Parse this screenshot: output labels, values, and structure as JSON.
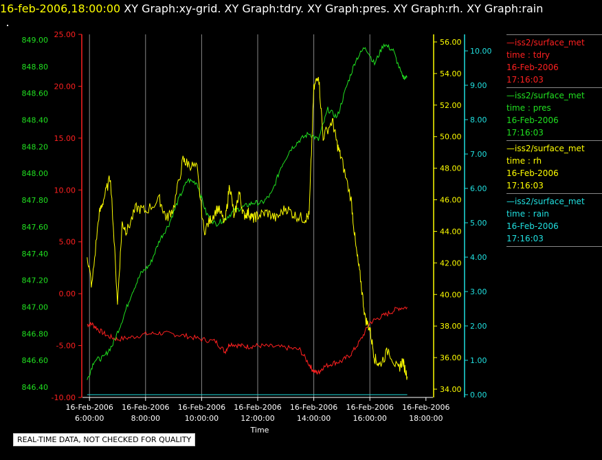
{
  "header": {
    "datetime": "16-feb-2006,18:00:00",
    "graphs": "XY Graph:xy-grid.  XY Graph:tdry.  XY Graph:pres.  XY Graph:rh.  XY Graph:rain"
  },
  "notice": "REAL-TIME DATA, NOT CHECKED FOR QUALITY",
  "colors": {
    "tdry": "#ff2020",
    "pres": "#20e020",
    "rh": "#ffff00",
    "rain": "#20e0e0",
    "grid": "#888888"
  },
  "legend": [
    {
      "line": "—iss2/surface_met",
      "var": "time : tdry",
      "date": "16-Feb-2006",
      "time": "17:16:03",
      "color": "#ff2020"
    },
    {
      "line": "—iss2/surface_met",
      "var": "time : pres",
      "date": "16-Feb-2006",
      "time": "17:16:03",
      "color": "#20e020"
    },
    {
      "line": "—iss2/surface_met",
      "var": "time : rh",
      "date": "16-Feb-2006",
      "time": "17:16:03",
      "color": "#ffff00"
    },
    {
      "line": "—iss2/surface_met",
      "var": "time : rain",
      "date": "16-Feb-2006",
      "time": "17:16:03",
      "color": "#20e0e0"
    }
  ],
  "chart_data": {
    "type": "line",
    "xlabel": "Time",
    "xrange": [
      "16-Feb-2006 5:45:00",
      "16-Feb-2006 18:15:00"
    ],
    "xticks": [
      {
        "t": 6,
        "date": "16-Feb-2006",
        "time": "6:00:00"
      },
      {
        "t": 8,
        "date": "16-Feb-2006",
        "time": "8:00:00"
      },
      {
        "t": 10,
        "date": "16-Feb-2006",
        "time": "10:00:00"
      },
      {
        "t": 12,
        "date": "16-Feb-2006",
        "time": "12:00:00"
      },
      {
        "t": 14,
        "date": "16-Feb-2006",
        "time": "14:00:00"
      },
      {
        "t": 16,
        "date": "16-Feb-2006",
        "time": "16:00:00"
      },
      {
        "t": 18,
        "date": "16-Feb-2006",
        "time": "18:00:00"
      }
    ],
    "grid": "vertical",
    "axes": {
      "pres": {
        "side": "left",
        "ylim": [
          846.3,
          849.1
        ],
        "ticks": [
          "846.40",
          "846.60",
          "846.80",
          "847.00",
          "847.20",
          "847.40",
          "847.60",
          "847.80",
          "848.00",
          "848.20",
          "848.40",
          "848.60",
          "848.80",
          "849.00"
        ]
      },
      "tdry": {
        "side": "left",
        "ylim": [
          -10,
          25
        ],
        "ticks": [
          "-10.00",
          "-5.00",
          "0.00",
          "5.00",
          "10.00",
          "15.00",
          "20.00",
          "25.00"
        ]
      },
      "rh": {
        "side": "right",
        "ylim": [
          34,
          56
        ],
        "ticks": [
          "34.00",
          "36.00",
          "38.00",
          "40.00",
          "42.00",
          "44.00",
          "46.00",
          "48.00",
          "50.00",
          "52.00",
          "54.00",
          "56.00"
        ]
      },
      "rain": {
        "side": "right",
        "ylim": [
          0,
          10
        ],
        "ticks": [
          "0.00",
          "1.00",
          "2.00",
          "3.00",
          "4.00",
          "5.00",
          "6.00",
          "7.00",
          "8.00",
          "9.00",
          "10.00"
        ]
      }
    },
    "series": [
      {
        "name": "iss2/surface_met tdry",
        "axis": "tdry",
        "x": [
          "5:55",
          "6:05",
          "6:20",
          "6:40",
          "7:00",
          "7:30",
          "8:00",
          "8:30",
          "9:00",
          "9:30",
          "10:00",
          "10:30",
          "10:50",
          "11:00",
          "11:20",
          "11:40",
          "12:00",
          "12:30",
          "13:00",
          "13:30",
          "13:50",
          "14:00",
          "14:10",
          "14:20",
          "14:40",
          "15:00",
          "15:20",
          "15:40",
          "16:00",
          "16:20",
          "16:40",
          "17:00",
          "17:20"
        ],
        "y": [
          -3.0,
          -2.9,
          -3.5,
          -4.1,
          -4.4,
          -4.2,
          -3.9,
          -3.8,
          -3.9,
          -4.1,
          -4.4,
          -4.6,
          -5.6,
          -4.8,
          -5.0,
          -5.1,
          -5.0,
          -5.1,
          -5.2,
          -5.4,
          -6.8,
          -7.5,
          -7.6,
          -7.1,
          -6.7,
          -6.5,
          -5.8,
          -4.5,
          -2.8,
          -2.3,
          -1.9,
          -1.4,
          -1.3
        ]
      },
      {
        "name": "iss2/surface_met pres",
        "axis": "pres",
        "x": [
          "5:55",
          "6:10",
          "6:30",
          "6:50",
          "7:10",
          "7:30",
          "7:50",
          "8:10",
          "8:30",
          "8:50",
          "9:10",
          "9:30",
          "9:50",
          "10:10",
          "10:30",
          "10:50",
          "11:10",
          "11:30",
          "11:50",
          "12:10",
          "12:30",
          "12:50",
          "13:10",
          "13:30",
          "13:50",
          "14:10",
          "14:30",
          "14:50",
          "15:10",
          "15:30",
          "15:50",
          "16:10",
          "16:30",
          "16:50",
          "17:10",
          "17:20"
        ],
        "y": [
          846.45,
          846.6,
          846.62,
          846.72,
          846.9,
          847.1,
          847.25,
          847.32,
          847.5,
          847.62,
          847.8,
          847.95,
          847.93,
          847.7,
          847.62,
          847.66,
          847.72,
          847.75,
          847.78,
          847.78,
          847.85,
          848.05,
          848.18,
          848.25,
          848.3,
          848.25,
          848.48,
          848.42,
          848.65,
          848.85,
          848.95,
          848.82,
          848.97,
          848.92,
          848.72,
          848.72
        ]
      },
      {
        "name": "iss2/surface_met rh",
        "axis": "rh",
        "x": [
          "5:55",
          "6:05",
          "6:20",
          "6:30",
          "6:45",
          "7:00",
          "7:10",
          "7:20",
          "7:40",
          "8:00",
          "8:30",
          "8:45",
          "9:00",
          "9:20",
          "9:30",
          "9:50",
          "10:05",
          "10:20",
          "10:35",
          "10:50",
          "11:00",
          "11:10",
          "11:20",
          "11:30",
          "11:40",
          "11:50",
          "12:00",
          "12:20",
          "12:40",
          "13:00",
          "13:20",
          "13:40",
          "13:50",
          "14:00",
          "14:10",
          "14:20",
          "14:40",
          "14:50",
          "15:00",
          "15:20",
          "15:30",
          "15:40",
          "15:50",
          "16:00",
          "16:10",
          "16:20",
          "16:40",
          "17:00",
          "17:10",
          "17:20"
        ],
        "y": [
          42.5,
          40.5,
          45.0,
          46.0,
          47.5,
          39.5,
          44.5,
          44.0,
          45.5,
          45.3,
          46.0,
          44.8,
          45.5,
          48.5,
          48.3,
          48.0,
          44.0,
          44.8,
          45.5,
          44.5,
          47.0,
          44.8,
          46.5,
          45.0,
          45.2,
          44.8,
          45.0,
          45.2,
          44.8,
          45.5,
          45.0,
          44.8,
          45.0,
          53.0,
          54.0,
          50.0,
          51.0,
          49.5,
          48.5,
          46.0,
          43.0,
          41.0,
          38.5,
          37.8,
          36.0,
          35.5,
          36.5,
          35.2,
          35.8,
          34.8
        ]
      },
      {
        "name": "iss2/surface_met rain",
        "axis": "rain",
        "x": [
          "5:55",
          "17:20"
        ],
        "y": [
          0.0,
          0.0
        ]
      }
    ]
  }
}
